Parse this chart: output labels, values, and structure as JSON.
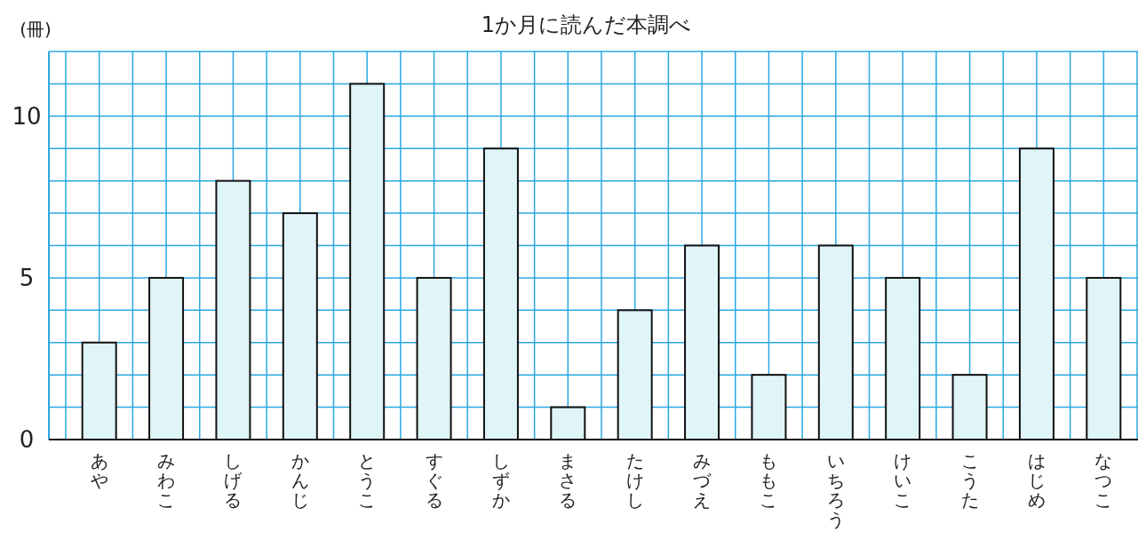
{
  "chart_data": {
    "type": "bar",
    "title": "1か月に読んだ本調べ",
    "ylabel": "(冊)",
    "categories": [
      "あや",
      "みわこ",
      "しげる",
      "かんじ",
      "とうこ",
      "すぐる",
      "しずか",
      "まさる",
      "たけし",
      "みづえ",
      "ももこ",
      "いちろう",
      "けいこ",
      "こうた",
      "はじめ",
      "なつこ"
    ],
    "values": [
      3,
      5,
      8,
      7,
      11,
      5,
      9,
      1,
      4,
      6,
      2,
      6,
      5,
      2,
      9,
      5
    ],
    "color": "#dff5f7",
    "ylim": [
      0,
      12
    ],
    "yticks": [
      0,
      5,
      10
    ],
    "grid": true
  }
}
